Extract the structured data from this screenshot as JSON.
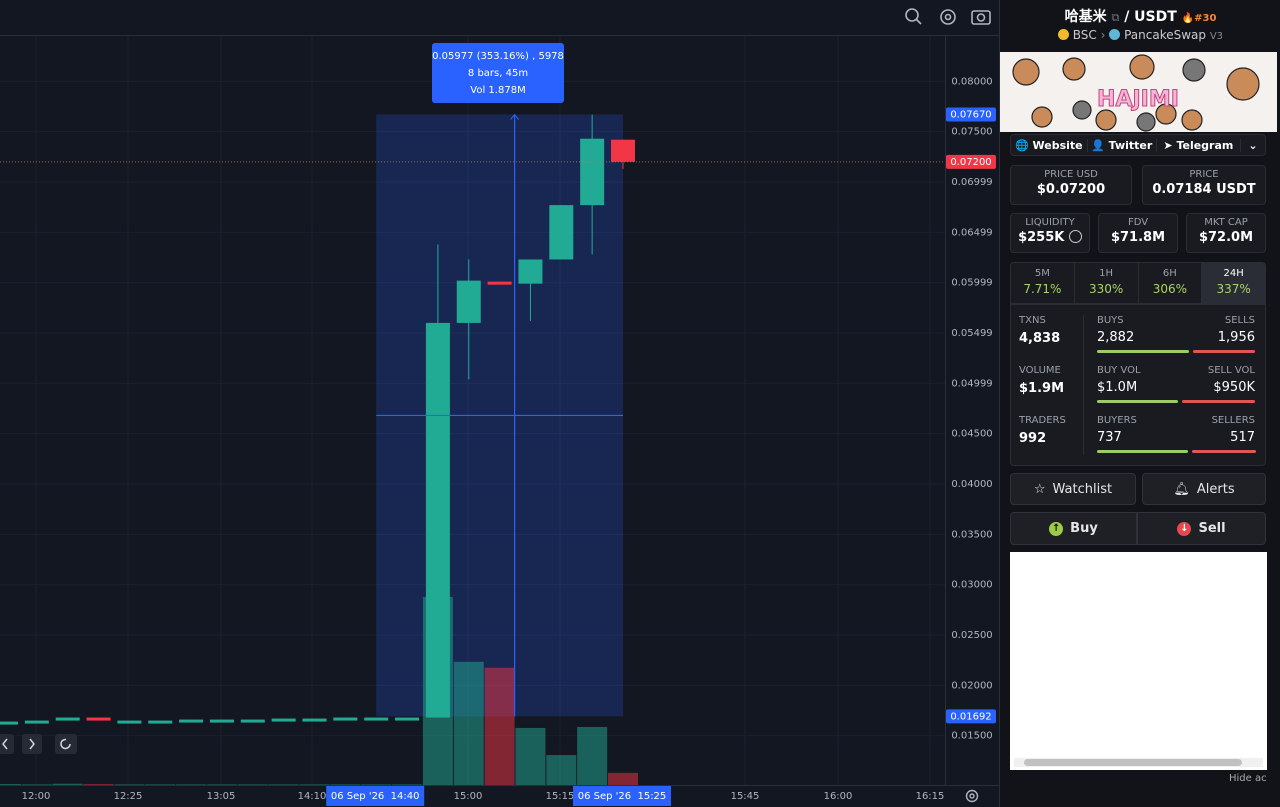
{
  "chart_data": {
    "type": "candlestick",
    "ylim": [
      0.0101,
      0.0845
    ],
    "yticks": [
      {
        "value": 0.08,
        "label": "0.08000"
      },
      {
        "value": 0.075,
        "label": "0.07500"
      },
      {
        "value": 0.06999,
        "label": "0.06999"
      },
      {
        "value": 0.06499,
        "label": "0.06499"
      },
      {
        "value": 0.05999,
        "label": "0.05999"
      },
      {
        "value": 0.05499,
        "label": "0.05499"
      },
      {
        "value": 0.04999,
        "label": "0.04999"
      },
      {
        "value": 0.045,
        "label": "0.04500"
      },
      {
        "value": 0.04,
        "label": "0.04000"
      },
      {
        "value": 0.035,
        "label": "0.03500"
      },
      {
        "value": 0.03,
        "label": "0.03000"
      },
      {
        "value": 0.025,
        "label": "0.02500"
      },
      {
        "value": 0.02,
        "label": "0.02000"
      },
      {
        "value": 0.015,
        "label": "0.01500"
      }
    ],
    "x_labels": [
      "12:00",
      "12:25",
      "13:05",
      "14:10",
      "15:00",
      "15:15",
      "15:45",
      "16:00",
      "16:15"
    ],
    "open": [
      0.0163,
      0.0164,
      0.0165,
      0.0168,
      0.0165,
      0.0165,
      0.0165,
      0.0166,
      0.0166,
      0.0166,
      0.0167,
      0.0167,
      0.0168,
      0.0168,
      0.0168,
      0.056,
      0.0601,
      0.0599,
      0.0623,
      0.0677,
      0.0742
    ],
    "high": [
      0.0164,
      0.0165,
      0.0168,
      0.0168,
      0.0165,
      0.0165,
      0.0166,
      0.0166,
      0.0166,
      0.0167,
      0.0167,
      0.0168,
      0.0168,
      0.0168,
      0.0638,
      0.0623,
      0.0601,
      0.0623,
      0.0677,
      0.0767,
      0.0742
    ],
    "low": [
      0.0163,
      0.0164,
      0.0165,
      0.0165,
      0.0165,
      0.0165,
      0.0165,
      0.0166,
      0.0166,
      0.0166,
      0.0167,
      0.0167,
      0.0168,
      0.0168,
      0.0168,
      0.0504,
      0.0599,
      0.0562,
      0.0623,
      0.0628,
      0.0713
    ],
    "close": [
      0.0164,
      0.0165,
      0.0168,
      0.0165,
      0.0165,
      0.0165,
      0.0166,
      0.0166,
      0.0166,
      0.0167,
      0.0167,
      0.0168,
      0.0168,
      0.0168,
      0.056,
      0.0602,
      0.0599,
      0.0623,
      0.0677,
      0.0743,
      0.072
    ],
    "volume": [
      3000,
      2000,
      4000,
      3000,
      2000,
      2000,
      2000,
      2000,
      2000,
      2000,
      2000,
      2000,
      2000,
      2000,
      603000,
      395000,
      376000,
      183000,
      96000,
      186000,
      39000
    ],
    "vlim": [
      0,
      978000
    ],
    "up_color": "#22ab94",
    "down_color": "#f23645",
    "price_labels": [
      {
        "value": 0.0767,
        "label": "0.07670",
        "color": "#2962ff"
      },
      {
        "value": 0.072,
        "label": "0.07200",
        "color": "#f23645"
      },
      {
        "value": 0.01692,
        "label": "0.01692",
        "color": "#2962ff"
      }
    ],
    "range_labels": [
      "06 Sep '26  14:40",
      "06 Sep '26  15:25"
    ],
    "measure": [
      "0.05977 (353.16%) , 5978",
      "8 bars, 45m",
      "Vol 1.878M"
    ]
  },
  "panel": {
    "pair": {
      "base": "哈基米",
      "quote": "/ USDT",
      "rank": "#30",
      "chain": "BSC",
      "dex": "PancakeSwap",
      "version": "V3"
    },
    "banner": "HAJIMI",
    "links": [
      "Website",
      "Twitter",
      "Telegram"
    ],
    "price": [
      {
        "label": "PRICE USD",
        "value": "$0.07200"
      },
      {
        "label": "PRICE",
        "value": "0.07184 USDT"
      }
    ],
    "metrics": [
      {
        "label": "LIQUIDITY",
        "value": "$255K"
      },
      {
        "label": "FDV",
        "value": "$71.8M"
      },
      {
        "label": "MKT CAP",
        "value": "$72.0M"
      }
    ],
    "changes": [
      {
        "label": "5M",
        "value": "7.71%"
      },
      {
        "label": "1H",
        "value": "330%"
      },
      {
        "label": "6H",
        "value": "306%"
      },
      {
        "label": "24H",
        "value": "337%"
      }
    ],
    "stats": [
      {
        "label": "TXNS",
        "value": "4,838",
        "left_label": "BUYS",
        "left_value": "2,882",
        "right_label": "SELLS",
        "right_value": "1,956"
      },
      {
        "label": "VOLUME",
        "value": "$1.9M",
        "left_label": "BUY VOL",
        "left_value": "$1.0M",
        "right_label": "SELL VOL",
        "right_value": "$950K"
      },
      {
        "label": "TRADERS",
        "value": "992",
        "left_label": "BUYERS",
        "left_value": "737",
        "right_label": "SELLERS",
        "right_value": "517"
      }
    ],
    "actions": [
      "Watchlist",
      "Alerts",
      "Buy",
      "Sell"
    ],
    "footer": "Hide ac"
  }
}
